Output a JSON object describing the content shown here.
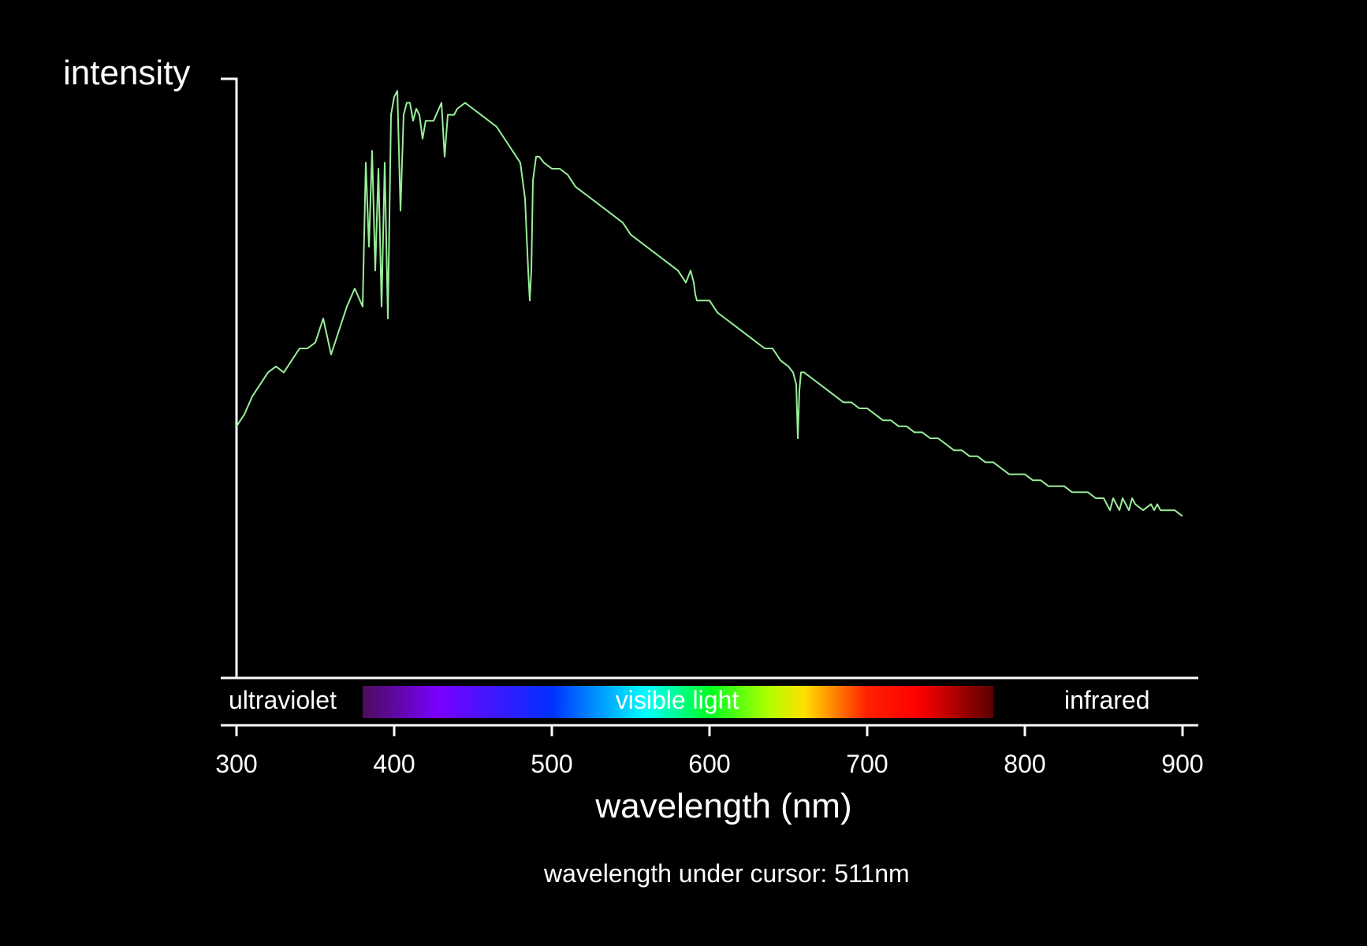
{
  "chart_data": {
    "type": "line",
    "ylabel": "intensity",
    "xlabel": "wavelength (nm)",
    "xlim": [
      300,
      900
    ],
    "x_ticks": [
      300,
      400,
      500,
      600,
      700,
      800,
      900
    ],
    "grid": false,
    "line_color": "#99ee99",
    "bands": {
      "ultraviolet": "ultraviolet",
      "visible": "visible light",
      "infrared": "infrared",
      "visible_range": [
        380,
        780
      ]
    },
    "series": [
      {
        "x": [
          300,
          305,
          310,
          315,
          320,
          325,
          330,
          335,
          340,
          345,
          350,
          355,
          360,
          365,
          370,
          375,
          380,
          382,
          384,
          386,
          388,
          390,
          392,
          394,
          396,
          398,
          400,
          402,
          404,
          406,
          408,
          410,
          412,
          414,
          416,
          418,
          420,
          425,
          430,
          432,
          434,
          436,
          438,
          440,
          445,
          450,
          455,
          460,
          465,
          470,
          475,
          480,
          483,
          485,
          486,
          487,
          488,
          490,
          492,
          495,
          500,
          505,
          510,
          515,
          520,
          525,
          530,
          535,
          540,
          545,
          550,
          555,
          560,
          565,
          570,
          575,
          580,
          585,
          588,
          590,
          591,
          592,
          595,
          600,
          605,
          610,
          615,
          620,
          625,
          630,
          635,
          640,
          645,
          650,
          653,
          655,
          656,
          657,
          658,
          660,
          665,
          670,
          675,
          680,
          685,
          690,
          695,
          700,
          705,
          710,
          715,
          720,
          725,
          730,
          735,
          740,
          745,
          750,
          755,
          760,
          765,
          770,
          775,
          780,
          785,
          790,
          795,
          800,
          805,
          810,
          815,
          820,
          825,
          830,
          835,
          840,
          845,
          850,
          852,
          854,
          856,
          858,
          860,
          862,
          864,
          866,
          868,
          870,
          875,
          880,
          882,
          884,
          886,
          890,
          895,
          900
        ],
        "y": [
          42,
          44,
          47,
          49,
          51,
          52,
          51,
          53,
          55,
          55,
          56,
          60,
          54,
          58,
          62,
          65,
          62,
          86,
          72,
          88,
          68,
          85,
          62,
          86,
          60,
          94,
          97,
          98,
          78,
          94,
          96,
          96,
          93,
          95,
          94,
          90,
          93,
          93,
          96,
          87,
          94,
          94,
          94,
          95,
          96,
          95,
          94,
          93,
          92,
          90,
          88,
          86,
          80,
          68,
          63,
          68,
          83,
          87,
          87,
          86,
          85,
          85,
          84,
          82,
          81,
          80,
          79,
          78,
          77,
          76,
          74,
          73,
          72,
          71,
          70,
          69,
          68,
          66,
          68,
          66,
          64,
          63,
          63,
          63,
          61,
          60,
          59,
          58,
          57,
          56,
          55,
          55,
          53,
          52,
          51,
          49,
          40,
          48,
          51,
          51,
          50,
          49,
          48,
          47,
          46,
          46,
          45,
          45,
          44,
          43,
          43,
          42,
          42,
          41,
          41,
          40,
          40,
          39,
          38,
          38,
          37,
          37,
          36,
          36,
          35,
          34,
          34,
          34,
          33,
          33,
          32,
          32,
          32,
          31,
          31,
          31,
          30,
          30,
          29,
          28,
          30,
          29,
          28,
          30,
          29,
          28,
          30,
          29,
          28,
          29,
          28,
          29,
          28,
          28,
          28,
          27
        ]
      }
    ]
  },
  "readout": {
    "label": "wavelength under cursor:",
    "value": "511nm"
  }
}
